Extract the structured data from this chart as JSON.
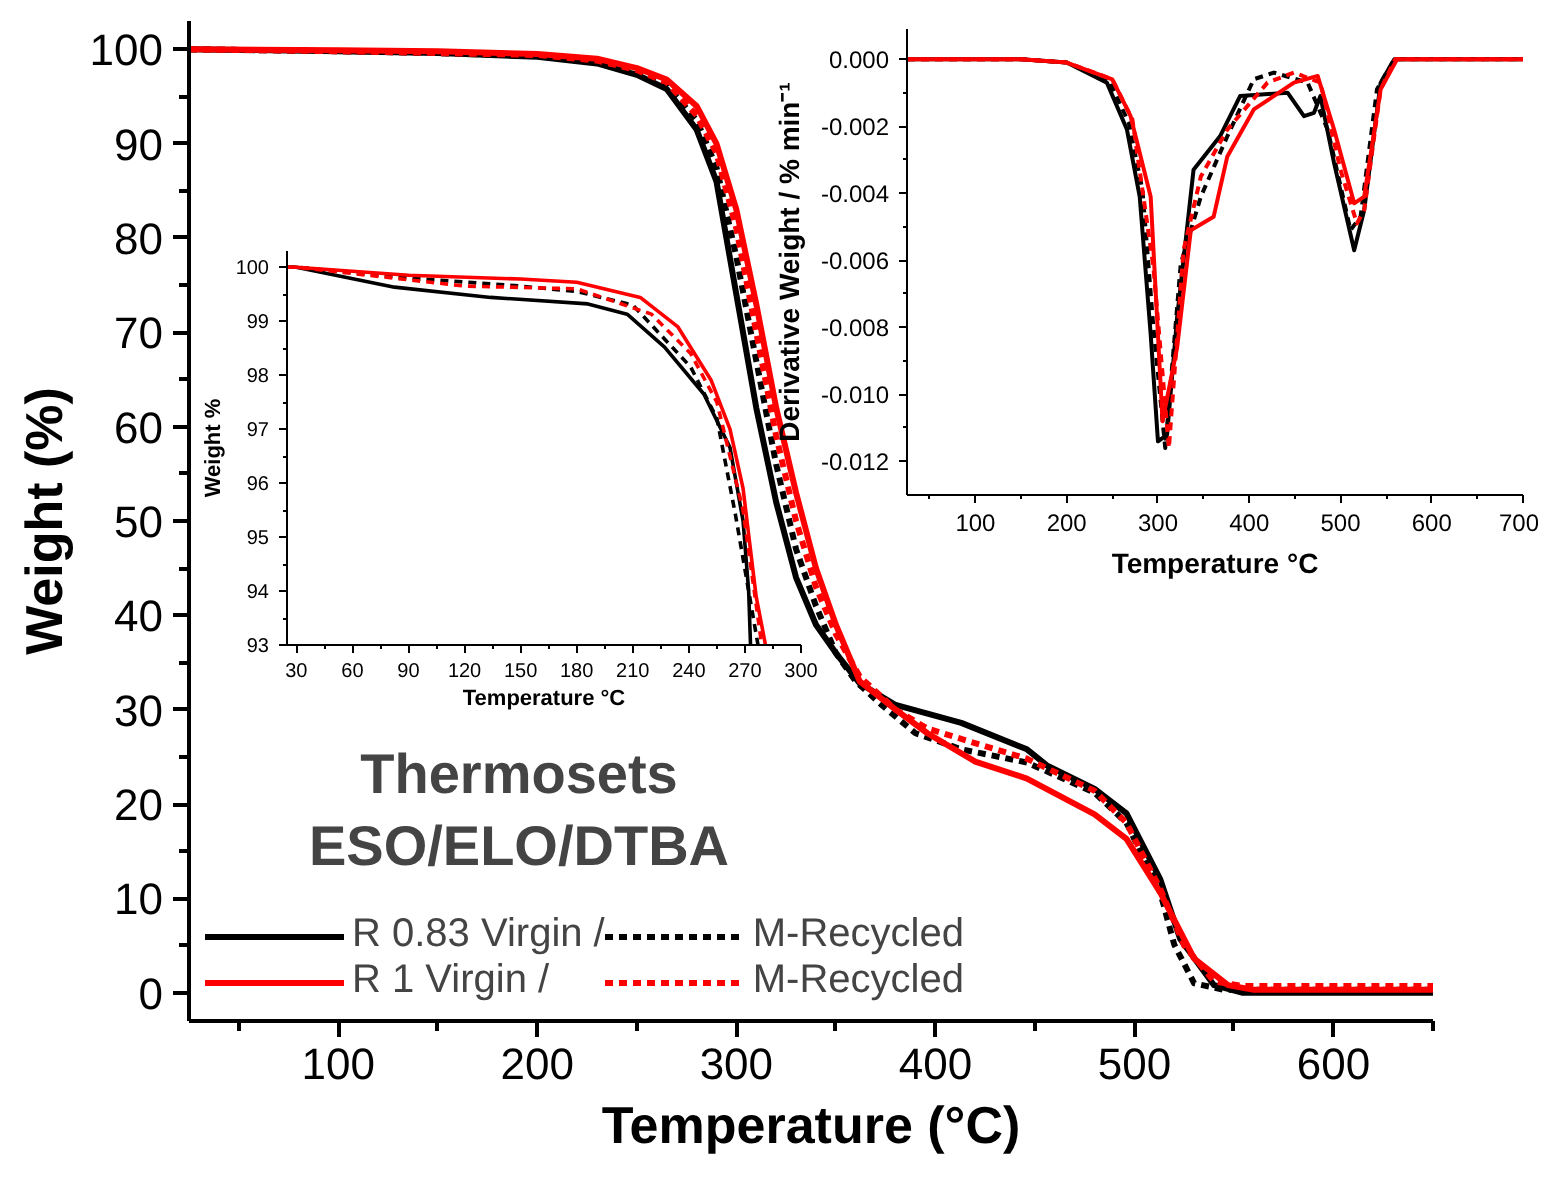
{
  "chart_data": [
    {
      "type": "line",
      "xlabel": "Temperature (°C)",
      "ylabel": "Weight (%)",
      "xlim": [
        25,
        650
      ],
      "ylim": [
        -3,
        103
      ],
      "xticks": [
        100,
        200,
        300,
        400,
        500,
        600
      ],
      "yticks": [
        0,
        10,
        20,
        30,
        40,
        50,
        60,
        70,
        80,
        90,
        100
      ],
      "grid": false,
      "legend": "bottom left",
      "annotations": [
        "Thermosets",
        "ESO/ELO/DTBA"
      ],
      "series": [
        {
          "name": "R 0.83 Virgin /",
          "color": "#000000",
          "line_style": "solid",
          "x": [
            25,
            100,
            150,
            200,
            230,
            250,
            265,
            280,
            290,
            300,
            310,
            320,
            330,
            340,
            350,
            362,
            380,
            413,
            446,
            456,
            480,
            496,
            513,
            523,
            540,
            554,
            650
          ],
          "values": [
            100,
            99.8,
            99.6,
            99.2,
            98.5,
            97.3,
            95.8,
            91.5,
            86,
            74,
            62,
            52,
            44,
            39,
            36,
            32.8,
            30.5,
            28.6,
            25.8,
            24.1,
            21.6,
            19,
            12,
            5.7,
            0.8,
            0,
            0
          ]
        },
        {
          "name": "M-Recycled",
          "color": "#000000",
          "line_style": "dashed",
          "x": [
            25,
            100,
            150,
            200,
            230,
            250,
            265,
            280,
            290,
            300,
            310,
            320,
            330,
            340,
            350,
            360,
            373,
            390,
            413,
            446,
            480,
            496,
            513,
            520,
            530,
            545,
            650
          ],
          "values": [
            100,
            99.8,
            99.6,
            99.3,
            98.7,
            97.6,
            96.2,
            92.5,
            87.5,
            78,
            67,
            56,
            47,
            41,
            36,
            33,
            30.5,
            27.5,
            25.8,
            24.4,
            21.2,
            18,
            10.6,
            5.1,
            1,
            0.3,
            0.3
          ]
        },
        {
          "name": "R 1 Virgin /",
          "color": "#ff0000",
          "line_style": "solid",
          "x": [
            25,
            100,
            150,
            200,
            230,
            250,
            265,
            280,
            290,
            300,
            310,
            320,
            330,
            340,
            350,
            362,
            380,
            396,
            420,
            446,
            480,
            496,
            513,
            530,
            547,
            560,
            650
          ],
          "values": [
            100,
            99.9,
            99.8,
            99.5,
            99,
            98,
            96.8,
            94,
            90,
            83,
            73,
            62,
            53,
            45,
            39,
            33,
            30,
            27.5,
            24.5,
            22.7,
            18.9,
            16.3,
            10.6,
            3.6,
            0.8,
            0.3,
            0.3
          ]
        },
        {
          "name": "M-Recycled",
          "color": "#ff0000",
          "line_style": "dashed",
          "x": [
            25,
            100,
            150,
            200,
            230,
            250,
            265,
            280,
            290,
            300,
            310,
            320,
            330,
            340,
            350,
            362,
            380,
            396,
            413,
            446,
            480,
            496,
            513,
            525,
            540,
            555,
            650
          ],
          "values": [
            100,
            99.8,
            99.6,
            99.4,
            98.8,
            97.8,
            96.5,
            93,
            89,
            81,
            70,
            59,
            50,
            43,
            38,
            33.5,
            30,
            28,
            26.9,
            24.8,
            21.4,
            18,
            11,
            5,
            1.2,
            0.7,
            0.7
          ]
        }
      ]
    },
    {
      "type": "line",
      "xlabel": "Temperature °C",
      "ylabel": "Weight %",
      "xlim": [
        25,
        300
      ],
      "ylim": [
        93,
        100.3
      ],
      "xticks": [
        30,
        60,
        90,
        120,
        150,
        180,
        210,
        240,
        270,
        300
      ],
      "yticks": [
        93,
        94,
        95,
        96,
        97,
        98,
        99,
        100
      ],
      "grid": false,
      "series": [
        {
          "color": "#000000",
          "line_style": "solid",
          "x": [
            25,
            30,
            82.5,
            134,
            186,
            207,
            227,
            248,
            262,
            269,
            272,
            273
          ],
          "values": [
            100,
            100,
            99.63,
            99.44,
            99.32,
            99.13,
            98.52,
            97.65,
            96.66,
            95.3,
            94,
            93
          ]
        },
        {
          "color": "#000000",
          "line_style": "dashed",
          "x": [
            25,
            30,
            90,
            150,
            180,
            210,
            241,
            255,
            265,
            272,
            277
          ],
          "values": [
            100,
            100,
            99.8,
            99.65,
            99.55,
            99.3,
            98.15,
            97.2,
            95.4,
            94,
            93
          ]
        },
        {
          "color": "#ff0000",
          "line_style": "solid",
          "x": [
            25,
            30,
            90,
            150,
            180,
            214,
            234,
            252,
            262,
            269,
            276,
            281
          ],
          "values": [
            100,
            100,
            99.85,
            99.78,
            99.72,
            99.44,
            98.9,
            97.9,
            97,
            95.9,
            93.9,
            93
          ]
        },
        {
          "color": "#ff0000",
          "line_style": "dashed",
          "x": [
            25,
            30,
            120,
            180,
            220,
            241,
            255,
            269,
            279
          ],
          "values": [
            100,
            100,
            99.65,
            99.6,
            99.13,
            98.4,
            97.5,
            95.5,
            93
          ]
        }
      ]
    },
    {
      "type": "line",
      "xlabel": "Temperature °C",
      "ylabel": "Derivative Weight / % min⁻¹",
      "xlim": [
        25,
        700
      ],
      "ylim": [
        -0.013,
        0.0009
      ],
      "xticks": [
        100,
        200,
        300,
        400,
        500,
        600,
        700
      ],
      "yticks": [
        {
          "value": 0,
          "label": "0.000"
        },
        {
          "value": -0.002,
          "label": "-0.002"
        },
        {
          "value": -0.004,
          "label": "-0.004"
        },
        {
          "value": -0.006,
          "label": "-0.006"
        },
        {
          "value": -0.008,
          "label": "-0.008"
        },
        {
          "value": -0.01,
          "label": "-0.010"
        },
        {
          "value": -0.012,
          "label": "-0.012"
        }
      ],
      "grid": false,
      "series": [
        {
          "color": "#000000",
          "line_style": "solid",
          "x": [
            25,
            150,
            200,
            244,
            266,
            280,
            292,
            300,
            310,
            321,
            339,
            368,
            390,
            442,
            460,
            471,
            478,
            493,
            515,
            526,
            544,
            559,
            700
          ],
          "values": [
            0,
            0,
            -0.0001,
            -0.0007,
            -0.0021,
            -0.0041,
            -0.0082,
            -0.0114,
            -0.0112,
            -0.0077,
            -0.0033,
            -0.0023,
            -0.0011,
            -0.001,
            -0.0017,
            -0.0016,
            -0.0011,
            -0.0031,
            -0.0057,
            -0.0045,
            -0.0007,
            0,
            0
          ]
        },
        {
          "color": "#000000",
          "line_style": "dashed",
          "x": [
            25,
            150,
            200,
            246,
            268,
            283,
            295,
            308,
            325,
            347,
            376,
            405,
            427,
            464,
            486,
            511,
            522,
            540,
            559,
            700
          ],
          "values": [
            0,
            0,
            -0.0001,
            -0.0006,
            -0.0019,
            -0.0039,
            -0.008,
            -0.0116,
            -0.0061,
            -0.0041,
            -0.0023,
            -0.0006,
            -0.0004,
            -0.0007,
            -0.0021,
            -0.0051,
            -0.0047,
            -0.0009,
            0,
            0
          ]
        },
        {
          "color": "#ff0000",
          "line_style": "solid",
          "x": [
            25,
            150,
            200,
            250,
            270,
            292,
            305,
            321,
            336,
            361,
            376,
            405,
            449,
            475,
            493,
            515,
            526,
            544,
            562,
            700
          ],
          "values": [
            0,
            0,
            -0.0001,
            -0.0006,
            -0.0017,
            -0.0041,
            -0.0108,
            -0.0086,
            -0.0051,
            -0.0047,
            -0.0029,
            -0.0015,
            -0.0007,
            -0.0005,
            -0.0021,
            -0.0043,
            -0.0041,
            -0.0009,
            0,
            0
          ]
        },
        {
          "color": "#ff0000",
          "line_style": "dashed",
          "x": [
            25,
            150,
            200,
            250,
            272,
            295,
            312,
            328,
            347,
            376,
            420,
            449,
            478,
            500,
            518,
            526,
            544,
            560,
            700
          ],
          "values": [
            0,
            0,
            -0.0001,
            -0.0006,
            -0.0018,
            -0.0062,
            -0.0116,
            -0.0057,
            -0.0035,
            -0.0021,
            -0.0007,
            -0.0004,
            -0.0007,
            -0.0033,
            -0.0049,
            -0.0045,
            -0.0009,
            0,
            0
          ]
        }
      ]
    }
  ]
}
